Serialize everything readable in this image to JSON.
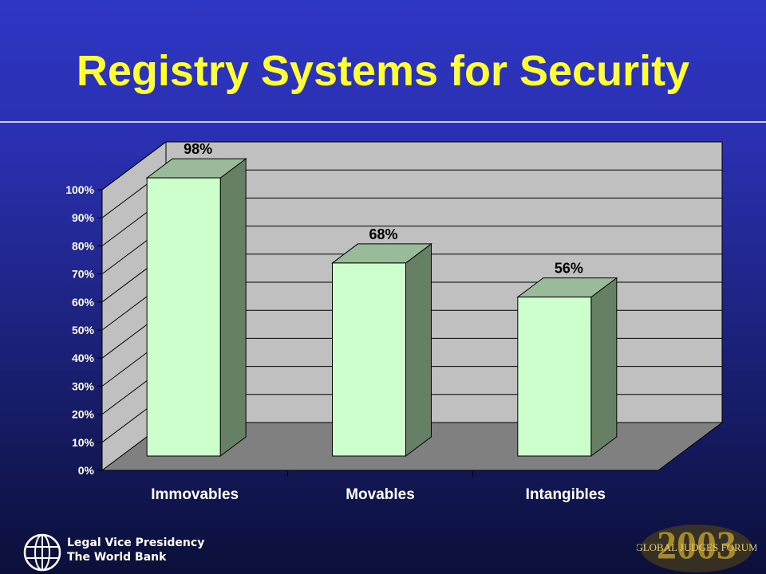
{
  "slide": {
    "title": "Registry Systems for Security"
  },
  "footer": {
    "org_line1": "Legal Vice Presidency",
    "org_line2": "The World Bank",
    "forum_year": "2003",
    "forum_name": "GLOBAL JUDGES FORUM"
  },
  "colors": {
    "title": "#ffff33",
    "bar_front": "#ccffcc",
    "bar_top": "#99bb99",
    "bar_side": "#668066",
    "wall": "#c0c0c0",
    "floor": "#808080"
  },
  "chart_data": {
    "type": "bar",
    "categories": [
      "Immovables",
      "Movables",
      "Intangibles"
    ],
    "values": [
      98,
      68,
      56
    ],
    "data_labels": [
      "98%",
      "68%",
      "56%"
    ],
    "ylim": [
      0,
      100
    ],
    "yticks": [
      "0%",
      "10%",
      "20%",
      "30%",
      "40%",
      "50%",
      "60%",
      "70%",
      "80%",
      "90%",
      "100%"
    ],
    "grid": true,
    "legend": "none",
    "style": "3d"
  }
}
